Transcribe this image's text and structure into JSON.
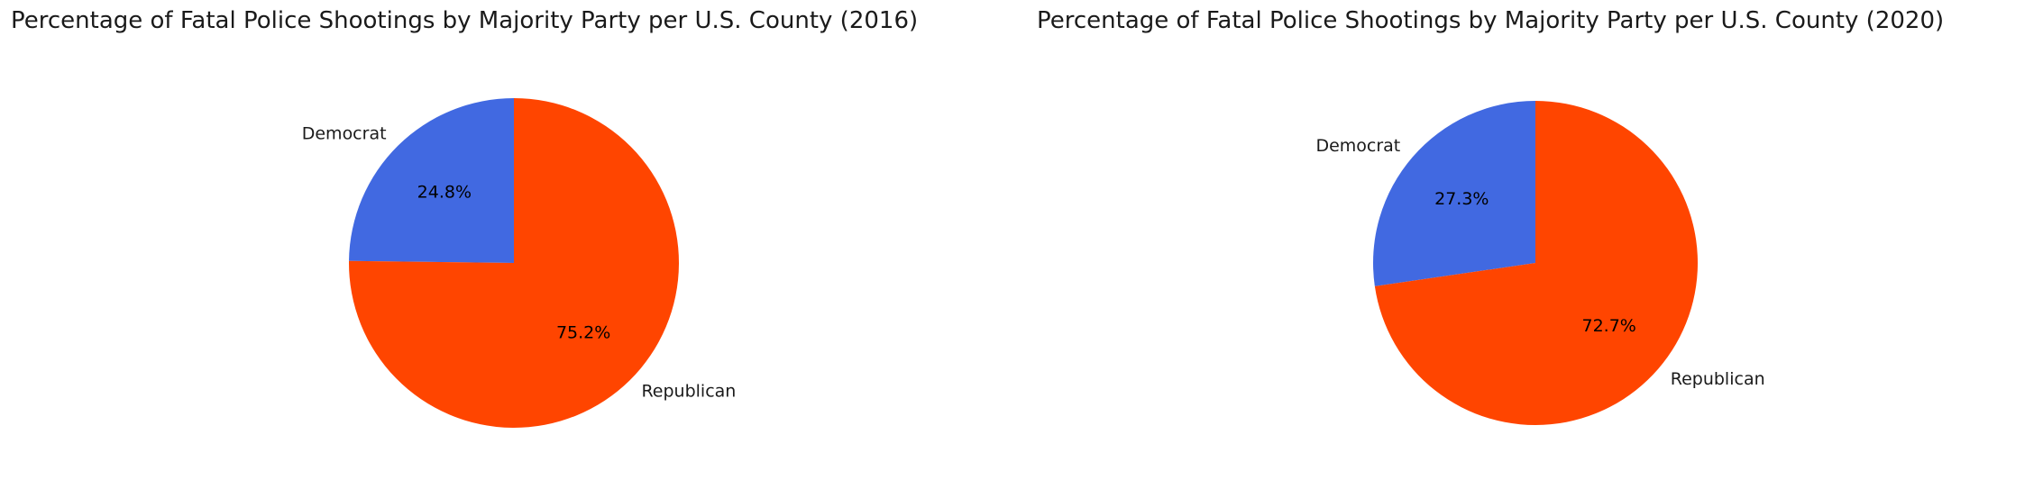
{
  "colors": {
    "democrat": "#4169E1",
    "republican": "#FF4500"
  },
  "chart_data": [
    {
      "type": "pie",
      "title": "Percentage of Fatal Police Shootings by Majority Party per U.S. County (2016)",
      "slices": [
        {
          "label": "Democrat",
          "value": 24.8,
          "value_label": "24.8%",
          "color": "#4169E1"
        },
        {
          "label": "Republican",
          "value": 75.2,
          "value_label": "75.2%",
          "color": "#FF4500"
        }
      ],
      "start_angle": 90,
      "direction": "counterclockwise",
      "legend": "none"
    },
    {
      "type": "pie",
      "title": "Percentage of Fatal Police Shootings by Majority Party per U.S. County (2020)",
      "slices": [
        {
          "label": "Democrat",
          "value": 27.3,
          "value_label": "27.3%",
          "color": "#4169E1"
        },
        {
          "label": "Republican",
          "value": 72.7,
          "value_label": "72.7%",
          "color": "#FF4500"
        }
      ],
      "start_angle": 90,
      "direction": "counterclockwise",
      "legend": "none"
    }
  ]
}
